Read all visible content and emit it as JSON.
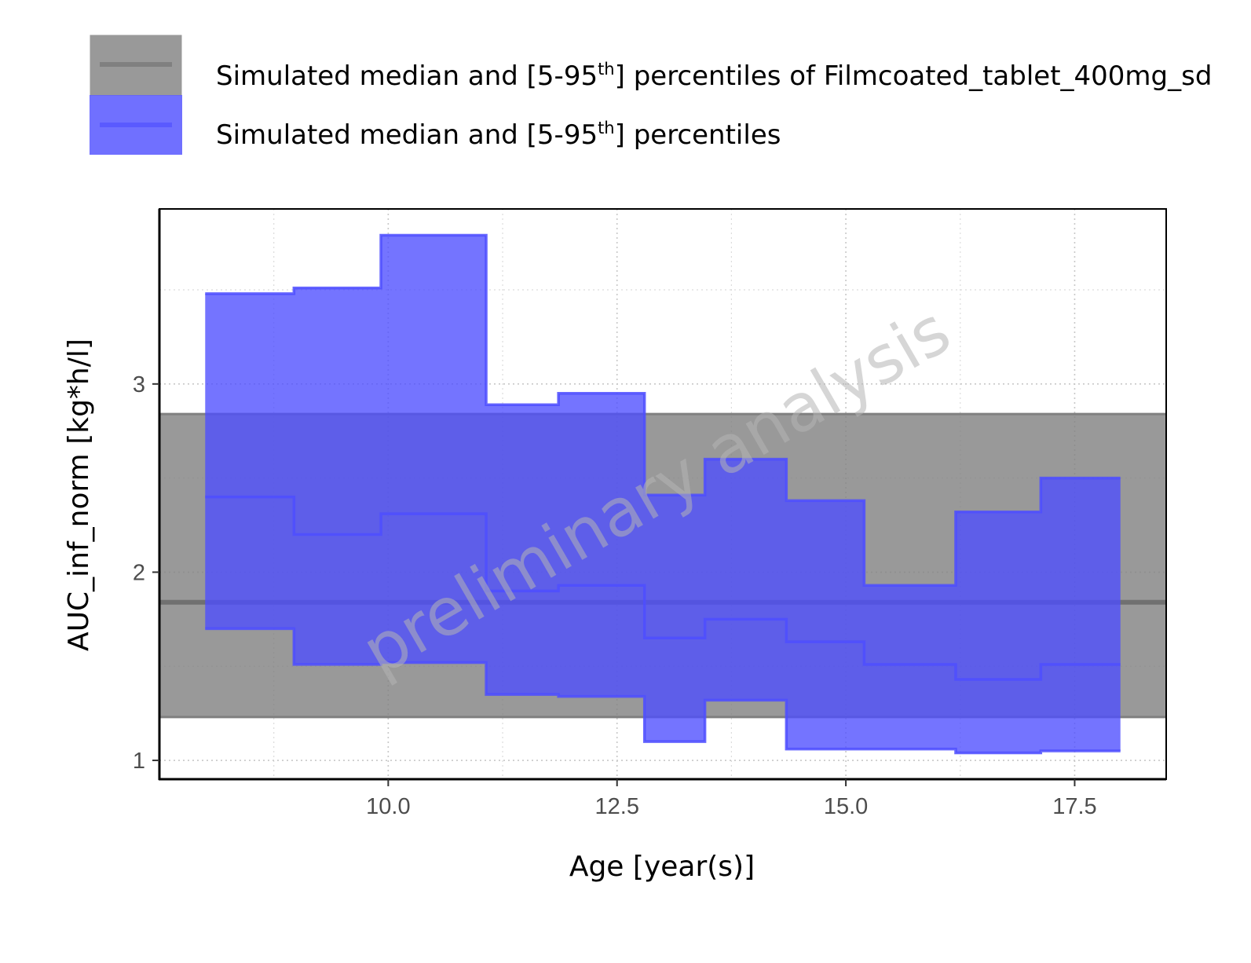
{
  "chart_data": {
    "type": "area",
    "xlabel": "Age [year(s)]",
    "ylabel": "AUC_inf_norm [kg*h/l]",
    "xlim": [
      7.5,
      18.5
    ],
    "ylim": [
      0.9,
      3.93
    ],
    "x_ticks": [
      10.0,
      12.5,
      15.0,
      17.5
    ],
    "x_tick_labels": [
      "10.0",
      "12.5",
      "15.0",
      "17.5"
    ],
    "y_ticks": [
      1,
      2,
      3
    ],
    "y_tick_labels": [
      "1",
      "2",
      "3"
    ],
    "grid": true,
    "legend_position": "top",
    "watermark": "preliminary analysis",
    "series": [
      {
        "name": "Simulated median and [5-95th] percentiles of Filmcoated_tablet_400mg_sd",
        "kind": "reference-band",
        "color": "#808080",
        "median": 1.84,
        "p5": 1.23,
        "p95": 2.84
      },
      {
        "name": "Simulated median and [5-95th] percentiles",
        "kind": "step-band",
        "color": "#4d4dff",
        "bins": [
          {
            "x_start": 8.0,
            "x_end": 8.97,
            "p5": 1.7,
            "median": 2.4,
            "p95": 3.48
          },
          {
            "x_start": 8.97,
            "x_end": 9.92,
            "p5": 1.51,
            "median": 2.2,
            "p95": 3.51
          },
          {
            "x_start": 9.92,
            "x_end": 11.07,
            "p5": 1.52,
            "median": 2.31,
            "p95": 3.79
          },
          {
            "x_start": 11.07,
            "x_end": 11.86,
            "p5": 1.35,
            "median": 1.9,
            "p95": 2.89
          },
          {
            "x_start": 11.86,
            "x_end": 12.8,
            "p5": 1.34,
            "median": 1.93,
            "p95": 2.95
          },
          {
            "x_start": 12.8,
            "x_end": 13.46,
            "p5": 1.1,
            "median": 1.65,
            "p95": 2.41
          },
          {
            "x_start": 13.46,
            "x_end": 14.35,
            "p5": 1.32,
            "median": 1.75,
            "p95": 2.6
          },
          {
            "x_start": 14.35,
            "x_end": 15.2,
            "p5": 1.06,
            "median": 1.63,
            "p95": 2.38
          },
          {
            "x_start": 15.2,
            "x_end": 16.2,
            "p5": 1.06,
            "median": 1.51,
            "p95": 1.93
          },
          {
            "x_start": 16.2,
            "x_end": 17.13,
            "p5": 1.04,
            "median": 1.43,
            "p95": 2.32
          },
          {
            "x_start": 17.13,
            "x_end": 18.0,
            "p5": 1.05,
            "median": 1.51,
            "p95": 2.5
          }
        ]
      }
    ]
  },
  "legend": {
    "items": [
      {
        "pre": "Simulated median and [5-95",
        "sup": "th",
        "post": "] percentiles of Filmcoated_tablet_400mg_sd",
        "color": "#808080"
      },
      {
        "pre": "Simulated median and [5-95",
        "sup": "th",
        "post": "] percentiles",
        "color": "#4d4dff"
      }
    ]
  }
}
